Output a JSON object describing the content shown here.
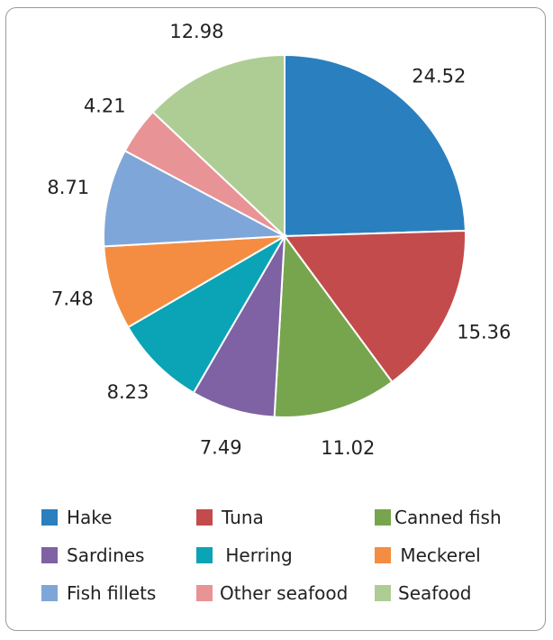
{
  "chart_data": {
    "type": "pie",
    "title": "",
    "categories": [
      "Hake",
      "Tuna",
      "Canned fish",
      "Sardines",
      "Herring",
      "Meckerel",
      "Fish fillets",
      "Other seafood",
      "Seafood"
    ],
    "values": [
      24.52,
      15.36,
      11.02,
      7.49,
      8.23,
      7.48,
      8.71,
      4.21,
      12.98
    ],
    "value_labels": [
      "24.52",
      "15.36",
      "11.02",
      "7.49",
      "8.23",
      "7.48",
      "8.71",
      "4.21",
      "12.98"
    ],
    "colors": [
      "#2a7fbf",
      "#c44b4b",
      "#77a54e",
      "#7e62a3",
      "#0ba3b6",
      "#f48d42",
      "#7fa6d8",
      "#e89396",
      "#aecd95"
    ],
    "legend_position": "bottom"
  },
  "legend": {
    "rows": [
      [
        {
          "label": "Hake",
          "color": "#2a7fbf"
        },
        {
          "label": "Tuna",
          "color": "#c44b4b"
        },
        {
          "label": "Canned fish",
          "color": "#77a54e"
        }
      ],
      [
        {
          "label": "Sardines",
          "color": "#7e62a3"
        },
        {
          "label": " Herring",
          "color": "#0ba3b6"
        },
        {
          "label": " Meckerel",
          "color": "#f48d42"
        }
      ],
      [
        {
          "label": "Fish fillets",
          "color": "#7fa6d8"
        },
        {
          "label": "Other seafood",
          "color": "#e89396"
        },
        {
          "label": "Seafood",
          "color": "#aecd95"
        }
      ]
    ]
  }
}
